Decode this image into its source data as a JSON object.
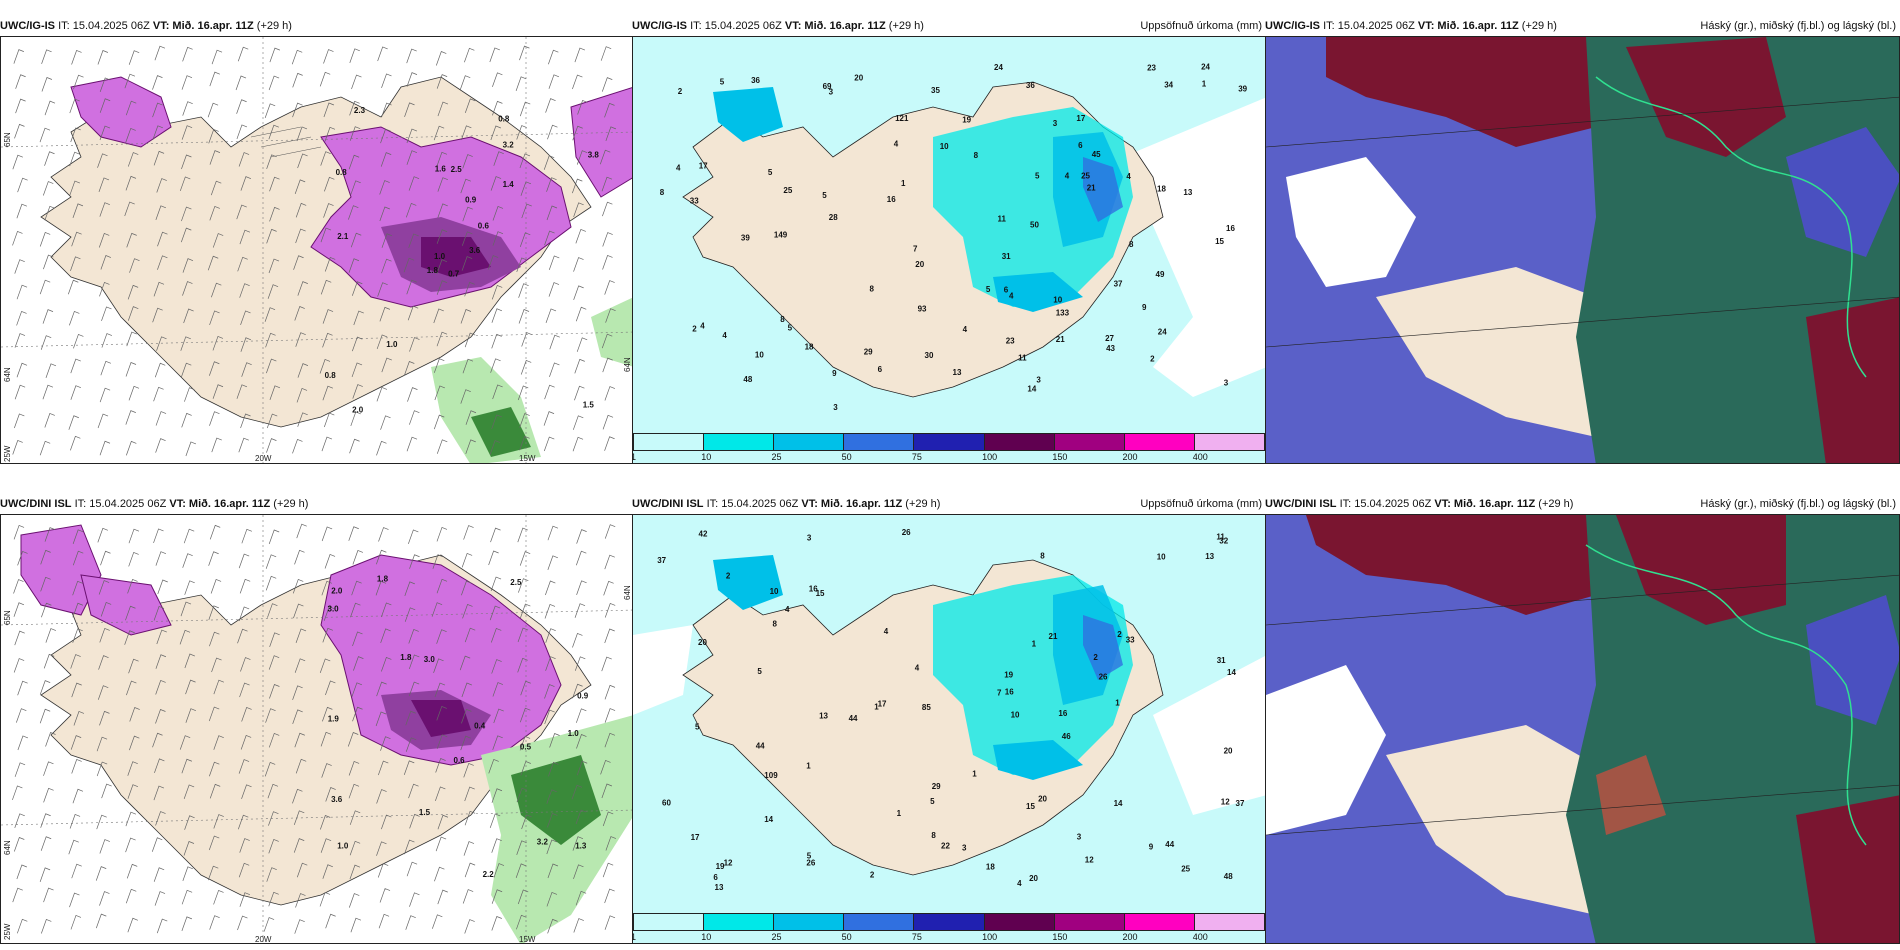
{
  "rows": [
    {
      "model": "UWC/IG-IS",
      "it_label": "IT: 15.04.2025 06Z",
      "vt_label": "VT: Mið. 16.apr. 11Z",
      "lead": "(+29 h)"
    },
    {
      "model": "UWC/DINI ISL",
      "it_label": "IT: 15.04.2025 06Z",
      "vt_label": "VT: Mið. 16.apr. 11Z",
      "lead": "(+29 h)"
    }
  ],
  "panel_titles": {
    "precip": "Uppsöfnuð úrkoma (mm)",
    "clouds": "Háský (gr.), miðský (fj.bl.) og lágský (bl.)"
  },
  "colorbar": {
    "labels": [
      "1",
      "10",
      "25",
      "50",
      "75",
      "100",
      "150",
      "200",
      "400"
    ],
    "colors": [
      "#c8fafa",
      "#00e8e8",
      "#00c0e8",
      "#3070e0",
      "#2020b0",
      "#600050",
      "#a00080",
      "#ff00c0",
      "#f0b0f0"
    ]
  },
  "axis_labels": {
    "left_top": [
      "65N",
      "64N",
      "25W"
    ],
    "bottom": [
      "20W",
      "15W"
    ],
    "right": "64N"
  },
  "precip_numbers_top": [
    "3",
    "3",
    "5",
    "5",
    "4",
    "11",
    "15",
    "28",
    "20",
    "18",
    "4",
    "4",
    "7",
    "6",
    "21",
    "23",
    "33",
    "34",
    "37",
    "18",
    "27",
    "4",
    "9",
    "43",
    "50",
    "45",
    "149",
    "25",
    "13",
    "121",
    "133",
    "24",
    "17",
    "29",
    "20",
    "30",
    "24",
    "17",
    "16",
    "10",
    "35",
    "11",
    "39",
    "24",
    "36",
    "49",
    "5",
    "93",
    "31",
    "1",
    "8",
    "8",
    "5",
    "6",
    "2",
    "3",
    "2",
    "1",
    "3",
    "2",
    "8",
    "14",
    "25",
    "39",
    "69",
    "48",
    "36",
    "23",
    "21",
    "16",
    "13",
    "5",
    "10",
    "19",
    "6",
    "9",
    "8",
    "8",
    "4",
    "4",
    "10",
    "5",
    "3",
    "4",
    "4"
  ],
  "precip_numbers_bottom": [
    "2",
    "4",
    "5",
    "3",
    "3",
    "2",
    "13",
    "25",
    "26",
    "4",
    "10",
    "22",
    "17",
    "5",
    "8",
    "7",
    "20",
    "26",
    "44",
    "37",
    "15",
    "32",
    "19",
    "19",
    "33",
    "44",
    "60",
    "109",
    "42",
    "46",
    "85",
    "20",
    "29",
    "13",
    "14",
    "16",
    "12",
    "17",
    "21",
    "44",
    "16",
    "26",
    "37",
    "12",
    "15",
    "20",
    "20",
    "18",
    "10",
    "8",
    "11",
    "31",
    "48",
    "14",
    "1",
    "2",
    "1",
    "4",
    "16",
    "5",
    "9",
    "12",
    "8",
    "1",
    "3",
    "6",
    "10",
    "14",
    "13",
    "1",
    "1",
    "1",
    "4",
    "5",
    "2"
  ],
  "wind_numbers_top": [
    "0.7",
    "0.8",
    "1.0",
    "0.8",
    "0.6",
    "1.0",
    "0.8",
    "2.5",
    "3.2",
    "3.6",
    "2.3",
    "1.5",
    "2.1",
    "3.8",
    "1.8",
    "1.4",
    "2.0",
    "1.6",
    "0.9"
  ],
  "wind_numbers_bottom": [
    "0.5",
    "1.0",
    "1.0",
    "1.8",
    "3.0",
    "3.2",
    "3.6",
    "2.5",
    "1.8",
    "2.2",
    "3.0",
    "1.9",
    "2.0",
    "1.3",
    "1.5",
    "0.9",
    "0.6",
    "0.4"
  ],
  "colors": {
    "land": "#f3e6d4",
    "ocean_precip": "#c8fafa",
    "purple_dark": "#6a1070",
    "purple_mid": "#b040c0",
    "purple_light": "#e080f0",
    "green_light": "#b8e8b0",
    "green_dark": "#3a8a3a",
    "cloud_maroon": "#7a1530",
    "cloud_blue": "#4a50c0",
    "cloud_teal": "#2a6a5a"
  }
}
